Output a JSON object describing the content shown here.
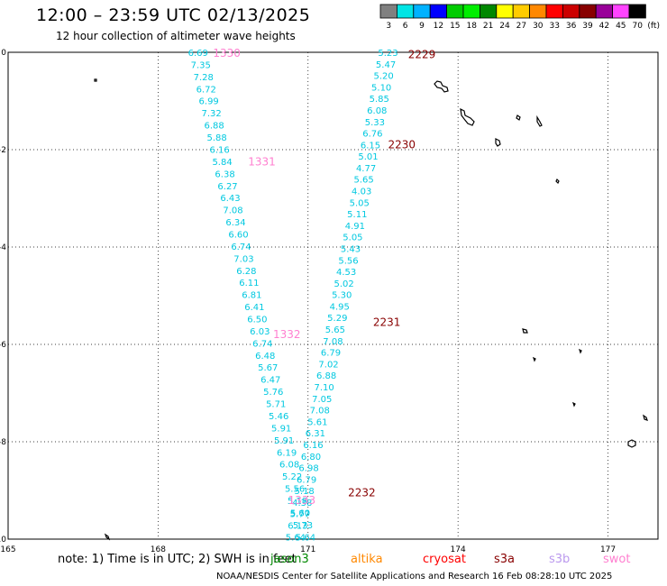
{
  "header": {
    "title": "12:00 – 23:59 UTC 02/13/2025",
    "subtitle": "12 hour collection of altimeter wave heights"
  },
  "legend": {
    "unit": "(ft)",
    "bins": [
      {
        "label": "3",
        "color": "#808080"
      },
      {
        "label": "6",
        "color": "#00e5e5"
      },
      {
        "label": "9",
        "color": "#00b2ff"
      },
      {
        "label": "12",
        "color": "#0000ff"
      },
      {
        "label": "15",
        "color": "#00cc00"
      },
      {
        "label": "18",
        "color": "#00ee00"
      },
      {
        "label": "21",
        "color": "#008800"
      },
      {
        "label": "24",
        "color": "#ffff00"
      },
      {
        "label": "27",
        "color": "#ffcc00"
      },
      {
        "label": "30",
        "color": "#ff8800"
      },
      {
        "label": "33",
        "color": "#ff0000"
      },
      {
        "label": "36",
        "color": "#cc0000"
      },
      {
        "label": "39",
        "color": "#880000"
      },
      {
        "label": "42",
        "color": "#990099"
      },
      {
        "label": "45",
        "color": "#ff44ff"
      },
      {
        "label": "70",
        "color": "#000000"
      }
    ]
  },
  "map": {
    "lon_ticks": [
      "165",
      "168",
      "171",
      "174",
      "177"
    ],
    "lat_ticks": [
      "0",
      "-2",
      "-4",
      "-6",
      "-8",
      "-10"
    ],
    "lon_range": [
      165,
      178
    ],
    "lat_range": [
      -10,
      0
    ]
  },
  "tracks": [
    {
      "color": "#00c8e0",
      "start": [
        168.8,
        0.0
      ],
      "end": [
        170.95,
        -9.95
      ],
      "values": [
        "6.69",
        "7.35",
        "7.28",
        "6.72",
        "6.99",
        "7.32",
        "6.88",
        "5.88",
        "6.16",
        "5.84",
        "6.38",
        "6.27",
        "6.43",
        "7.08",
        "6.34",
        "6.60",
        "6.74",
        "7.03",
        "6.28",
        "6.11",
        "6.81",
        "6.41",
        "6.50",
        "6.03",
        "6.74",
        "6.48",
        "5.67",
        "6.47",
        "5.76",
        "5.71",
        "5.46",
        "5.91",
        "5.91",
        "6.19",
        "6.08",
        "5.22",
        "5.56",
        "5.18",
        "5.60",
        "5.73",
        "5.64"
      ]
    },
    {
      "color": "#00c8e0",
      "start": [
        172.6,
        0.0
      ],
      "end": [
        170.75,
        -9.95
      ],
      "values": [
        "5.23",
        "5.47",
        "5.20",
        "5.10",
        "5.85",
        "6.08",
        "5.33",
        "6.76",
        "6.15",
        "5.01",
        "4.77",
        "5.65",
        "4.03",
        "5.05",
        "5.11",
        "4.91",
        "5.05",
        "5.43",
        "5.56",
        "4.53",
        "5.02",
        "5.30",
        "4.95",
        "5.29",
        "5.65",
        "7.08",
        "6.79",
        "7.02",
        "6.88",
        "7.10",
        "7.05",
        "7.08",
        "5.61",
        "6.31",
        "6.16",
        "6.80",
        "6.98",
        "6.79",
        "5.18",
        "4.38",
        "5.77",
        "6.13",
        "5.64"
      ]
    }
  ],
  "time_labels": [
    {
      "text": "1330",
      "lon": 169.1,
      "lat": -0.02,
      "color": "#ff80d0"
    },
    {
      "text": "1331",
      "lon": 169.8,
      "lat": -2.25,
      "color": "#ff80d0"
    },
    {
      "text": "1332",
      "lon": 170.3,
      "lat": -5.8,
      "color": "#ff80d0"
    },
    {
      "text": "1333",
      "lon": 170.6,
      "lat": -9.2,
      "color": "#ff80d0"
    },
    {
      "text": "2229",
      "lon": 173.0,
      "lat": -0.05,
      "color": "#880000"
    },
    {
      "text": "2230",
      "lon": 172.6,
      "lat": -1.9,
      "color": "#880000"
    },
    {
      "text": "2231",
      "lon": 172.3,
      "lat": -5.55,
      "color": "#880000"
    },
    {
      "text": "2232",
      "lon": 171.8,
      "lat": -9.05,
      "color": "#880000"
    }
  ],
  "note": "note: 1) Time is in UTC; 2) SWH is in feet",
  "satellites": [
    {
      "name": "jason3",
      "color": "#008800"
    },
    {
      "name": "altika",
      "color": "#ff8800"
    },
    {
      "name": "cryosat",
      "color": "#ff0000"
    },
    {
      "name": "s3a",
      "color": "#880000"
    },
    {
      "name": "s3b",
      "color": "#bb99ee"
    },
    {
      "name": "swot",
      "color": "#ff80d0"
    }
  ],
  "credit": "NOAA/NESDIS Center for Satellite Applications and Research    16 Feb 08:28:10 UTC 2025"
}
